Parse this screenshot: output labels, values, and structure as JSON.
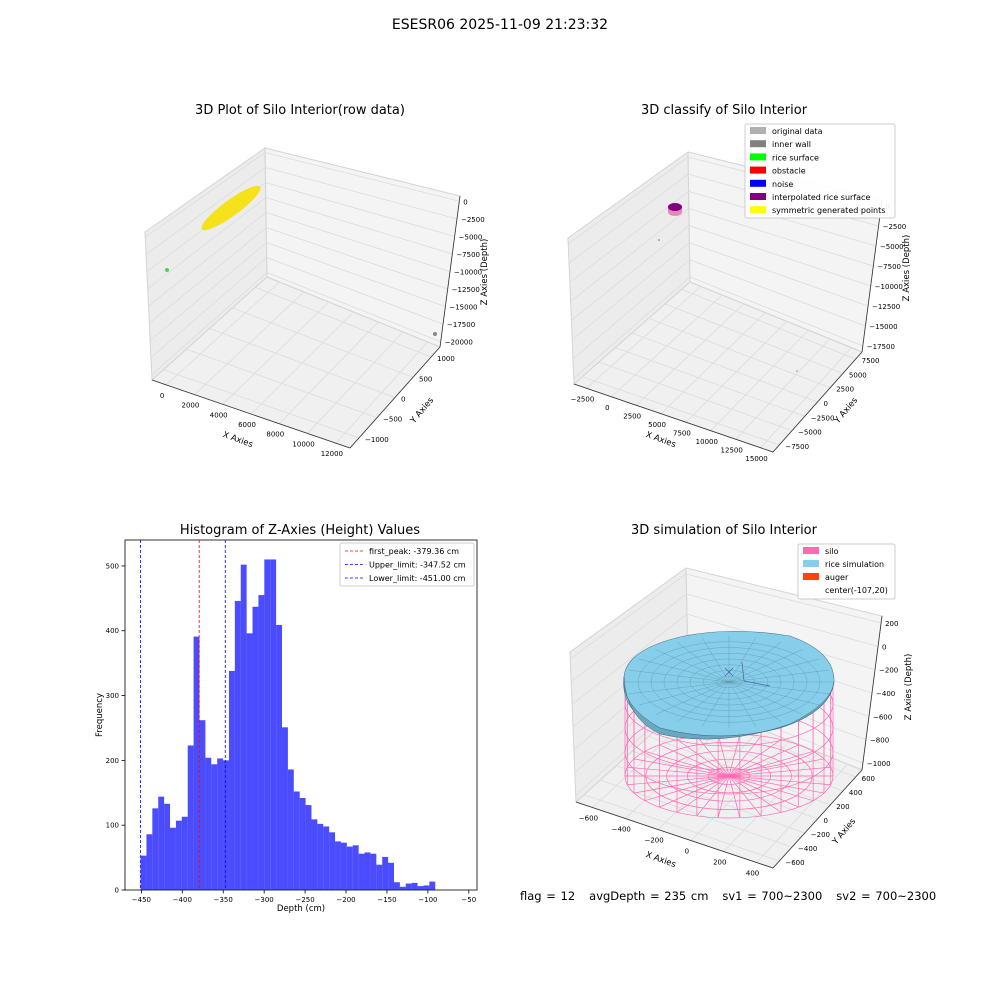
{
  "figure": {
    "suptitle": "ESESR06 2025-11-09 21:23:32",
    "footer": {
      "flag": "flag = 12",
      "avg_depth": "avgDepth = 235 cm",
      "sv1": "sv1 = 700~2300",
      "sv2": "sv2 = 700~2300"
    }
  },
  "colors": {
    "raw_points": "#f5e21b",
    "hist_bar": "#0000ff",
    "first_peak": "#ff0000",
    "limit_lines": "#0000ff",
    "silo": "#ff69b4",
    "rice_simulation": "#87ceeb",
    "auger": "#ff4500",
    "original_data": "#b0b0b0",
    "inner_wall": "#808080",
    "rice_surface": "#00ff00",
    "obstacle": "#ff0000",
    "noise": "#0000ff",
    "interpolated": "#800080",
    "symmetric": "#ffff00"
  },
  "chart_data": [
    {
      "type": "scatter",
      "title": "3D Plot of Silo Interior(row data)",
      "xlabel": "X Axies",
      "ylabel": "Y Axies",
      "zlabel": "Z Axies (Depth)",
      "x_ticks": [
        "0",
        "2000",
        "4000",
        "6000",
        "8000",
        "10000",
        "12000"
      ],
      "y_ticks": [
        "1000",
        "500",
        "0",
        "−500",
        "−1000"
      ],
      "z_ticks": [
        "0",
        "−2500",
        "−5000",
        "−7500",
        "−10000",
        "−12500",
        "−15000",
        "−17500",
        "−20000"
      ]
    },
    {
      "type": "scatter",
      "title": "3D classify of Silo Interior",
      "xlabel": "X Axies",
      "ylabel": "Y Axies",
      "zlabel": "Z Axies (Depth)",
      "x_ticks": [
        "−2500",
        "0",
        "2500",
        "5000",
        "7500",
        "10000",
        "12500",
        "15000"
      ],
      "y_ticks": [
        "7500",
        "5000",
        "2500",
        "0",
        "−2500",
        "−5000",
        "−7500"
      ],
      "z_ticks": [
        "0",
        "−2500",
        "−5000",
        "−7500",
        "−10000",
        "−12500",
        "−15000",
        "−17500"
      ],
      "legend": [
        "original data",
        "inner wall",
        "rice surface",
        "obstacle",
        "noise",
        "interpolated rice surface",
        "symmetric generated points"
      ],
      "legend_position": "top-right"
    },
    {
      "type": "bar",
      "title": "Histogram of Z-Axies (Height) Values",
      "xlabel": "Depth (cm)",
      "ylabel": "Frequency",
      "xlim": [
        -470,
        -40
      ],
      "ylim": [
        0,
        540
      ],
      "x_ticks": [
        -450,
        -400,
        -350,
        -300,
        -250,
        -200,
        -150,
        -100,
        -50
      ],
      "x_tick_labels": [
        "−450",
        "−400",
        "−350",
        "−300",
        "−250",
        "−200",
        "−150",
        "−100",
        "−50"
      ],
      "y_ticks": [
        0,
        100,
        200,
        300,
        400,
        500
      ],
      "y_tick_labels": [
        "0",
        "100",
        "200",
        "300",
        "400",
        "500"
      ],
      "bin_start": -451,
      "bin_width": 7.2,
      "values": [
        53,
        86,
        126,
        144,
        133,
        96,
        107,
        113,
        223,
        391,
        262,
        204,
        194,
        203,
        200,
        338,
        446,
        502,
        396,
        437,
        455,
        510,
        510,
        409,
        251,
        186,
        152,
        142,
        131,
        109,
        102,
        98,
        89,
        75,
        73,
        67,
        69,
        56,
        58,
        56,
        39,
        51,
        42,
        12,
        5,
        10,
        11,
        6,
        7,
        13
      ],
      "vlines": [
        {
          "label": "first_peak: -379.36 cm",
          "x": -379.36,
          "color": "#ff0000"
        },
        {
          "label": "Upper_limit: -347.52 cm",
          "x": -347.52,
          "color": "#0000ff"
        },
        {
          "label": "Lower_limit: -451.00 cm",
          "x": -451.0,
          "color": "#0000ff"
        }
      ],
      "legend_position": "top-right"
    },
    {
      "type": "area",
      "title": "3D simulation of Silo Interior",
      "xlabel": "X Axies",
      "ylabel": "Y Axies",
      "zlabel": "Z Axies (Depth)",
      "x_ticks": [
        "−600",
        "−400",
        "−200",
        "0",
        "200",
        "400"
      ],
      "y_ticks": [
        "600",
        "400",
        "200",
        "0",
        "−200",
        "−400",
        "−600"
      ],
      "z_ticks": [
        "200",
        "0",
        "−200",
        "−400",
        "−600",
        "−800",
        "−1000"
      ],
      "legend": [
        "silo",
        "rice simulation",
        "auger",
        "center(-107,20)"
      ],
      "legend_position": "top-right"
    }
  ]
}
